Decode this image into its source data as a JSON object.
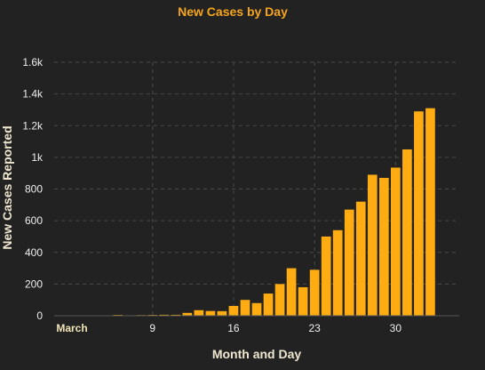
{
  "chart_data": {
    "type": "bar",
    "title": "New Cases by Day",
    "xlabel": "Month and Day",
    "ylabel": "New Cases Reported",
    "x_tick_labels": [
      {
        "day": 1,
        "label": "March"
      },
      {
        "day": 9,
        "label": "9"
      },
      {
        "day": 16,
        "label": "16"
      },
      {
        "day": 23,
        "label": "23"
      },
      {
        "day": 30,
        "label": "30"
      }
    ],
    "y_ticks": [
      {
        "value": 0,
        "label": "0"
      },
      {
        "value": 200,
        "label": "200"
      },
      {
        "value": 400,
        "label": "400"
      },
      {
        "value": 600,
        "label": "600"
      },
      {
        "value": 800,
        "label": "800"
      },
      {
        "value": 1000,
        "label": "1k"
      },
      {
        "value": 1200,
        "label": "1.2k"
      },
      {
        "value": 1400,
        "label": "1.4k"
      },
      {
        "value": 1600,
        "label": "1.6k"
      }
    ],
    "ylim": [
      0,
      1600
    ],
    "xlim_days": [
      1,
      35
    ],
    "grid": true,
    "days": [
      1,
      2,
      3,
      4,
      5,
      6,
      7,
      8,
      9,
      10,
      11,
      12,
      13,
      14,
      15,
      16,
      17,
      18,
      19,
      20,
      21,
      22,
      23,
      24,
      25,
      26,
      27,
      28,
      29,
      30,
      31,
      32,
      33,
      34
    ],
    "values": [
      0,
      0,
      0,
      2,
      0,
      5,
      3,
      4,
      5,
      6,
      6,
      18,
      35,
      30,
      29,
      62,
      100,
      80,
      140,
      200,
      300,
      180,
      290,
      500,
      540,
      670,
      720,
      890,
      870,
      935,
      1050,
      1290,
      1310,
      0
    ],
    "colors": {
      "bar": "#FFAC12",
      "title": "#F6A51A",
      "axis_text": "#EEEEEE",
      "grid": "#4A4A4A",
      "background": "#222222",
      "month_label": "#F1E4B8",
      "axis_title": "#EEE6CF"
    }
  }
}
